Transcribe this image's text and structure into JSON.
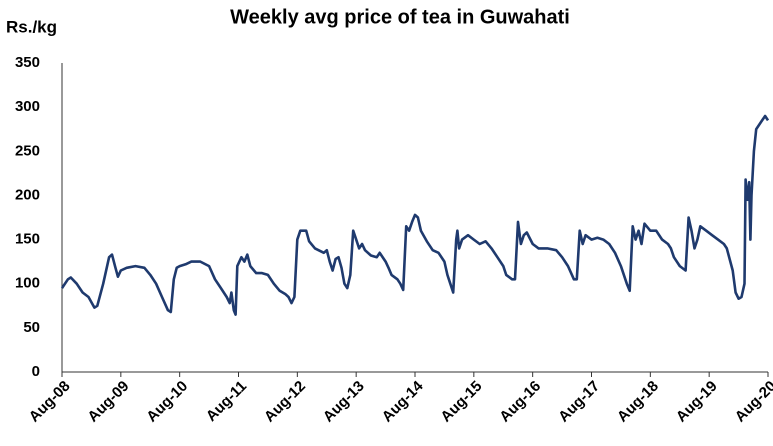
{
  "chart_data": {
    "type": "line",
    "title": "Weekly avg price of tea in Guwahati",
    "y_label": "Rs./kg",
    "x": [
      2008.58,
      2008.68,
      2008.73,
      2008.83,
      2008.93,
      2009.03,
      2009.13,
      2009.18,
      2009.28,
      2009.38,
      2009.43,
      2009.48,
      2009.53,
      2009.58,
      2009.68,
      2009.83,
      2009.98,
      2010.08,
      2010.18,
      2010.28,
      2010.38,
      2010.43,
      2010.48,
      2010.53,
      2010.58,
      2010.68,
      2010.78,
      2010.93,
      2011.08,
      2011.18,
      2011.28,
      2011.38,
      2011.43,
      2011.46,
      2011.5,
      2011.53,
      2011.56,
      2011.63,
      2011.68,
      2011.73,
      2011.78,
      2011.88,
      2011.98,
      2012.08,
      2012.18,
      2012.28,
      2012.38,
      2012.43,
      2012.48,
      2012.53,
      2012.58,
      2012.63,
      2012.73,
      2012.78,
      2012.88,
      2013.03,
      2013.08,
      2013.13,
      2013.18,
      2013.23,
      2013.28,
      2013.33,
      2013.38,
      2013.43,
      2013.48,
      2013.53,
      2013.58,
      2013.63,
      2013.68,
      2013.73,
      2013.83,
      2013.93,
      2013.98,
      2014.08,
      2014.13,
      2014.18,
      2014.28,
      2014.33,
      2014.38,
      2014.43,
      2014.48,
      2014.53,
      2014.58,
      2014.63,
      2014.68,
      2014.78,
      2014.88,
      2014.98,
      2015.08,
      2015.13,
      2015.18,
      2015.23,
      2015.28,
      2015.3,
      2015.33,
      2015.38,
      2015.48,
      2015.58,
      2015.68,
      2015.78,
      2015.88,
      2015.98,
      2016.08,
      2016.13,
      2016.23,
      2016.28,
      2016.33,
      2016.38,
      2016.43,
      2016.48,
      2016.58,
      2016.68,
      2016.83,
      2016.98,
      2017.08,
      2017.18,
      2017.28,
      2017.33,
      2017.38,
      2017.43,
      2017.48,
      2017.58,
      2017.68,
      2017.78,
      2017.88,
      2017.98,
      2018.08,
      2018.18,
      2018.23,
      2018.28,
      2018.33,
      2018.38,
      2018.43,
      2018.48,
      2018.58,
      2018.68,
      2018.78,
      2018.88,
      2018.93,
      2018.98,
      2019.08,
      2019.18,
      2019.23,
      2019.28,
      2019.33,
      2019.38,
      2019.43,
      2019.53,
      2019.63,
      2019.73,
      2019.83,
      2019.88,
      2019.98,
      2020.03,
      2020.08,
      2020.13,
      2020.18,
      2020.2,
      2020.23,
      2020.26,
      2020.28,
      2020.3,
      2020.34,
      2020.38,
      2020.48,
      2020.53,
      2020.58
    ],
    "values": [
      95,
      105,
      107,
      100,
      90,
      85,
      73,
      75,
      100,
      130,
      133,
      120,
      108,
      115,
      118,
      120,
      118,
      110,
      100,
      85,
      70,
      68,
      105,
      118,
      120,
      122,
      125,
      125,
      120,
      105,
      95,
      85,
      78,
      90,
      70,
      65,
      120,
      130,
      125,
      133,
      120,
      112,
      112,
      110,
      100,
      92,
      88,
      85,
      78,
      85,
      150,
      160,
      160,
      148,
      140,
      135,
      138,
      125,
      115,
      128,
      130,
      118,
      100,
      95,
      110,
      160,
      150,
      140,
      145,
      138,
      132,
      130,
      135,
      125,
      118,
      110,
      105,
      100,
      93,
      165,
      160,
      170,
      178,
      175,
      160,
      148,
      138,
      135,
      125,
      110,
      100,
      90,
      150,
      160,
      140,
      150,
      155,
      150,
      145,
      148,
      140,
      130,
      120,
      110,
      105,
      105,
      170,
      145,
      155,
      158,
      145,
      140,
      140,
      138,
      130,
      120,
      105,
      105,
      160,
      145,
      155,
      150,
      152,
      150,
      145,
      135,
      120,
      100,
      92,
      165,
      150,
      160,
      145,
      168,
      160,
      160,
      150,
      145,
      140,
      130,
      120,
      115,
      175,
      160,
      140,
      150,
      165,
      160,
      155,
      150,
      145,
      140,
      115,
      90,
      83,
      85,
      100,
      218,
      195,
      215,
      150,
      200,
      250,
      275,
      285,
      290,
      285
    ],
    "color": "#1f3a6e",
    "xlim": [
      2008.58,
      2020.58
    ],
    "xticks": [
      {
        "value": 2008.58,
        "label": "Aug-08"
      },
      {
        "value": 2009.58,
        "label": "Aug-09"
      },
      {
        "value": 2010.58,
        "label": "Aug-10"
      },
      {
        "value": 2011.58,
        "label": "Aug-11"
      },
      {
        "value": 2012.58,
        "label": "Aug-12"
      },
      {
        "value": 2013.58,
        "label": "Aug-13"
      },
      {
        "value": 2014.58,
        "label": "Aug-14"
      },
      {
        "value": 2015.58,
        "label": "Aug-15"
      },
      {
        "value": 2016.58,
        "label": "Aug-16"
      },
      {
        "value": 2017.58,
        "label": "Aug-17"
      },
      {
        "value": 2018.58,
        "label": "Aug-18"
      },
      {
        "value": 2019.58,
        "label": "Aug-19"
      },
      {
        "value": 2020.58,
        "label": "Aug-20"
      }
    ],
    "ylim": [
      0,
      350
    ],
    "yticks": [
      0,
      50,
      100,
      150,
      200,
      250,
      300,
      350
    ],
    "grid": false
  }
}
